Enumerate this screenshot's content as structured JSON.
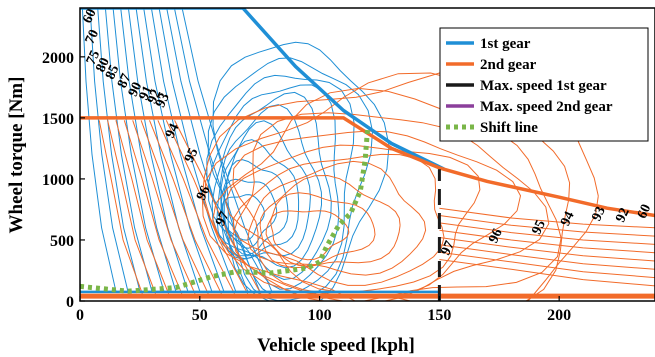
{
  "chart_data": {
    "type": "line",
    "xlabel": "Vehicle speed [kph]",
    "ylabel": "Wheel torque [Nm]",
    "xlim": [
      0,
      240
    ],
    "ylim": [
      0,
      2400
    ],
    "xticks": [
      "0",
      "50",
      "100",
      "150",
      "200"
    ],
    "yticks": [
      "0",
      "500",
      "1000",
      "1500",
      "2000"
    ],
    "grid": false,
    "legend_placement": "top-right",
    "colors": {
      "gear1": "#1f8fd6",
      "gear2": "#f26b2a",
      "max1": "#1a1a1a",
      "max2": "#8b3f9b",
      "shift": "#7ab648"
    },
    "legend": [
      {
        "label": "1st gear",
        "color": "#1f8fd6",
        "style": "solid"
      },
      {
        "label": "2nd gear",
        "color": "#f26b2a",
        "style": "solid"
      },
      {
        "label": "Max. speed 1st gear",
        "color": "#1a1a1a",
        "style": "solid"
      },
      {
        "label": "Max. speed 2nd gear",
        "color": "#8b3f9b",
        "style": "solid"
      },
      {
        "label": "Shift line",
        "color": "#7ab648",
        "style": "dotted"
      }
    ],
    "series": [
      {
        "name": "1st gear",
        "x": [
          0,
          68,
          90,
          110,
          130,
          152
        ],
        "y": [
          2400,
          2400,
          1920,
          1560,
          1290,
          1080
        ]
      },
      {
        "name": "2nd gear",
        "x": [
          0,
          110,
          130,
          150,
          170,
          200,
          220,
          240
        ],
        "y": [
          1500,
          1500,
          1250,
          1090,
          980,
          850,
          760,
          700
        ]
      },
      {
        "name": "Max. speed 1st gear",
        "x": [
          150,
          150
        ],
        "y": [
          0,
          1080
        ]
      },
      {
        "name": "Shift line",
        "x": [
          0,
          20,
          40,
          55,
          65,
          80,
          95,
          100,
          103,
          108,
          113,
          117,
          119,
          120
        ],
        "y": [
          120,
          80,
          110,
          200,
          240,
          230,
          270,
          320,
          450,
          620,
          720,
          900,
          1150,
          1400
        ]
      }
    ],
    "annotations": [
      {
        "text": "60",
        "x": 5.5,
        "y": 2320
      },
      {
        "text": "70",
        "x": 6.5,
        "y": 2150
      },
      {
        "text": "75",
        "x": 7,
        "y": 1980
      },
      {
        "text": "80",
        "x": 11,
        "y": 1920
      },
      {
        "text": "85",
        "x": 15,
        "y": 1860
      },
      {
        "text": "87",
        "x": 20,
        "y": 1790
      },
      {
        "text": "90",
        "x": 24.5,
        "y": 1720
      },
      {
        "text": "91",
        "x": 29,
        "y": 1690
      },
      {
        "text": "92",
        "x": 32.5,
        "y": 1660
      },
      {
        "text": "93",
        "x": 36,
        "y": 1630
      },
      {
        "text": "94",
        "x": 40,
        "y": 1380
      },
      {
        "text": "95",
        "x": 48,
        "y": 1180
      },
      {
        "text": "96",
        "x": 53,
        "y": 870
      },
      {
        "text": "97",
        "x": 61,
        "y": 660
      },
      {
        "text": "97",
        "x": 155,
        "y": 420
      },
      {
        "text": "96",
        "x": 175,
        "y": 520
      },
      {
        "text": "95",
        "x": 193,
        "y": 590
      },
      {
        "text": "94",
        "x": 205,
        "y": 660
      },
      {
        "text": "93",
        "x": 218,
        "y": 700
      },
      {
        "text": "92",
        "x": 228,
        "y": 690
      },
      {
        "text": "60",
        "x": 237,
        "y": 720
      }
    ]
  }
}
